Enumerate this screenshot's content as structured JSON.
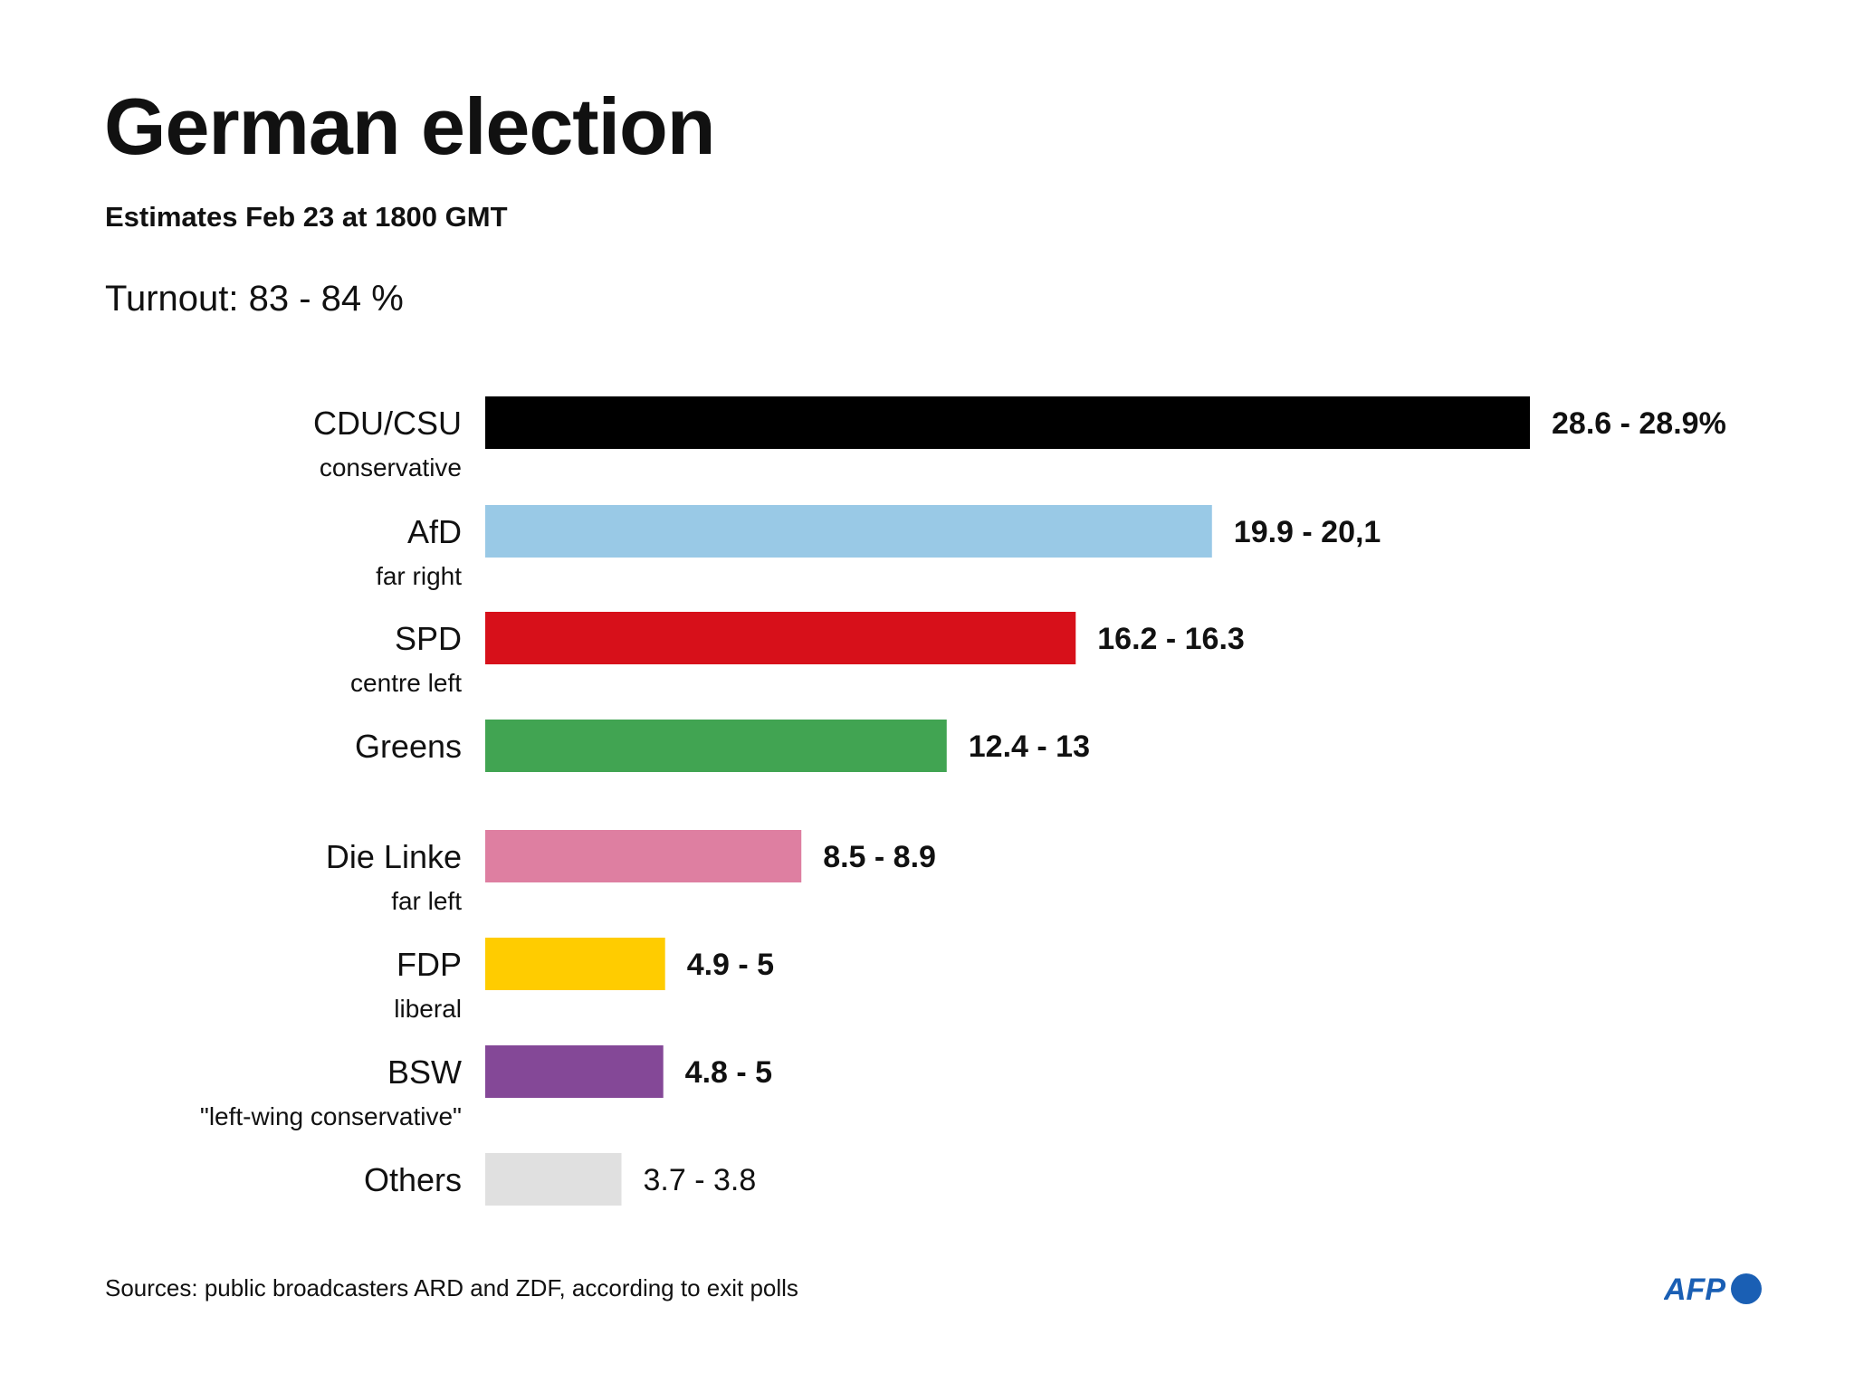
{
  "title": "German election",
  "subtitle": "Estimates Feb 23 at 1800 GMT",
  "turnout": "Turnout: 83 - 84 %",
  "source": "Sources: public broadcasters ARD and ZDF, according to exit polls",
  "logo_text": "AFP",
  "colors": {
    "logo": "#1a5fb4"
  },
  "chart_data": {
    "type": "bar",
    "orientation": "horizontal",
    "categories": [
      "CDU/CSU",
      "AfD",
      "SPD",
      "Greens",
      "Die Linke",
      "FDP",
      "BSW",
      "Others"
    ],
    "descriptions": [
      "conservative",
      "far right",
      "centre left",
      "",
      "far left",
      "liberal",
      "\"left-wing conservative\"",
      ""
    ],
    "values": [
      28.75,
      20.0,
      16.25,
      12.7,
      8.7,
      4.95,
      4.9,
      3.75
    ],
    "value_labels": [
      "28.6 - 28.9%",
      "19.9 - 20,1",
      "16.2 - 16.3",
      "12.4 - 13",
      "8.5 - 8.9",
      "4.9 - 5",
      "4.8 - 5",
      "3.7 - 3.8"
    ],
    "label_bold": [
      true,
      true,
      true,
      true,
      true,
      true,
      true,
      false
    ],
    "colors": [
      "#000000",
      "#99c9e6",
      "#d7101a",
      "#41a452",
      "#de7fa1",
      "#ffcc00",
      "#844897",
      "#e0e0e0"
    ],
    "xlim": [
      0,
      28.75
    ],
    "xlabel": "",
    "ylabel": "",
    "grid": false,
    "legend": "none"
  }
}
